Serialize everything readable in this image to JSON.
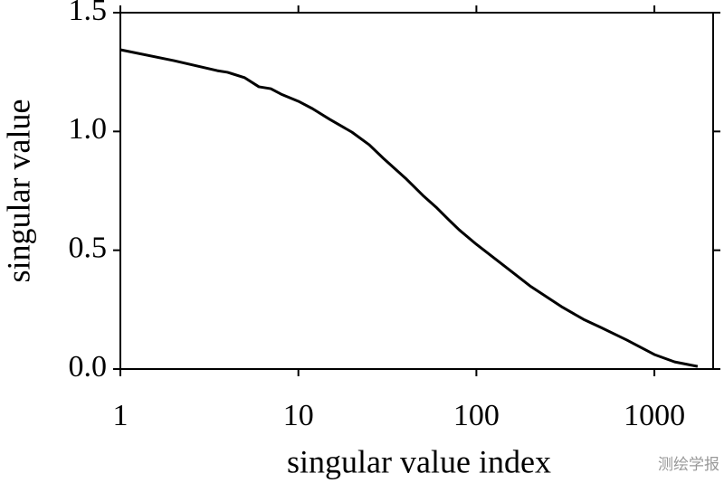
{
  "chart_data": {
    "type": "line",
    "xlabel": "singular value index",
    "ylabel": "singular value",
    "x": [
      1,
      2,
      3.5,
      4,
      5,
      6,
      7,
      8,
      10,
      12,
      15,
      20,
      25,
      30,
      40,
      50,
      60,
      70,
      80,
      100,
      150,
      200,
      300,
      400,
      500,
      700,
      1000,
      1300,
      1750
    ],
    "values": [
      1.344,
      1.298,
      1.256,
      1.249,
      1.226,
      1.188,
      1.18,
      1.157,
      1.127,
      1.096,
      1.051,
      0.997,
      0.944,
      0.887,
      0.803,
      0.731,
      0.678,
      0.628,
      0.586,
      0.525,
      0.423,
      0.35,
      0.263,
      0.209,
      0.175,
      0.122,
      0.061,
      0.03,
      0.011
    ],
    "color": "#000000",
    "xscale": "log",
    "xlim": [
      1,
      2138
    ],
    "xticks": [
      1,
      10,
      100,
      1000
    ],
    "ylim": [
      0,
      1.5
    ],
    "yticks": [
      {
        "value": 0,
        "label": "0.0"
      },
      {
        "value": 0.5,
        "label": "0.5"
      },
      {
        "value": 1,
        "label": "1.0"
      },
      {
        "value": 1.5,
        "label": "1.5"
      }
    ],
    "grid": false
  },
  "watermark": "测绘学报"
}
